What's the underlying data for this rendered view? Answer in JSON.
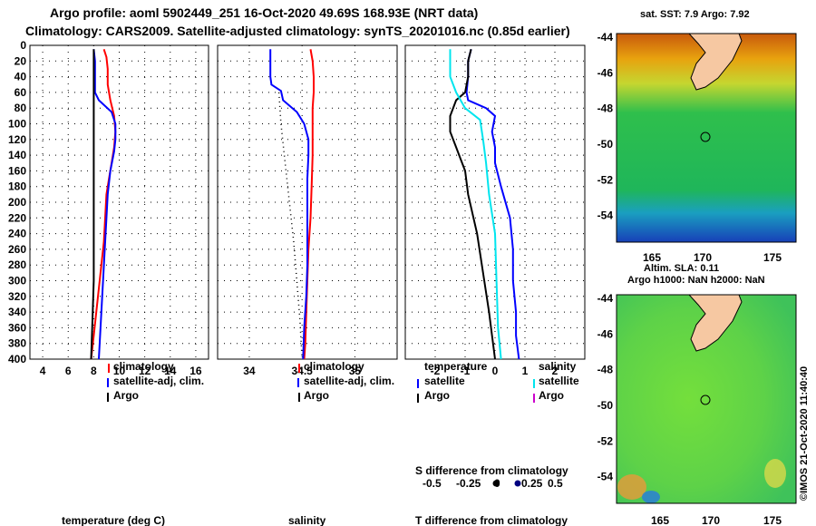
{
  "header": {
    "line1": "Argo profile: aoml 5902449_251 16-Oct-2020 49.69S 168.93E (NRT data)",
    "line2": "Climatology: CARS2009. Satellite-adjusted climatology: synTS_20201016.nc (0.85d earlier)"
  },
  "colors": {
    "argo": "#000000",
    "climatology": "#ff0000",
    "satellite": "#0000ff",
    "sal_satellite": "#00e5ee",
    "sal_argo": "#cc00cc"
  },
  "chart_data": [
    {
      "type": "line",
      "id": "temperature",
      "xlabel": "temperature (deg C)",
      "xlim": [
        3,
        17
      ],
      "xticks": [
        4,
        6,
        8,
        10,
        12,
        14,
        16
      ],
      "ylim": [
        0,
        400
      ],
      "yticks": [
        0,
        20,
        40,
        60,
        80,
        100,
        120,
        140,
        160,
        180,
        200,
        220,
        240,
        260,
        280,
        300,
        320,
        340,
        360,
        380,
        400
      ],
      "series": [
        {
          "name": "climatology",
          "color": "#ff0000",
          "points": [
            [
              8.8,
              5
            ],
            [
              9.0,
              15
            ],
            [
              9.1,
              30
            ],
            [
              9.1,
              50
            ],
            [
              9.3,
              70
            ],
            [
              9.6,
              90
            ],
            [
              9.7,
              110
            ],
            [
              9.6,
              130
            ],
            [
              9.4,
              150
            ],
            [
              9.2,
              170
            ],
            [
              9.0,
              190
            ],
            [
              8.9,
              220
            ],
            [
              8.8,
              250
            ],
            [
              8.6,
              280
            ],
            [
              8.4,
              310
            ],
            [
              8.2,
              340
            ],
            [
              8.0,
              370
            ],
            [
              7.8,
              400
            ]
          ]
        },
        {
          "name": "satellite-adj, clim.",
          "color": "#0000ff",
          "points": [
            [
              8.0,
              5
            ],
            [
              8.1,
              20
            ],
            [
              8.1,
              40
            ],
            [
              8.1,
              60
            ],
            [
              8.4,
              70
            ],
            [
              9.4,
              85
            ],
            [
              9.7,
              100
            ],
            [
              9.7,
              120
            ],
            [
              9.6,
              135
            ],
            [
              9.3,
              160
            ],
            [
              9.1,
              190
            ],
            [
              9.0,
              220
            ],
            [
              8.9,
              250
            ],
            [
              8.8,
              280
            ],
            [
              8.7,
              310
            ],
            [
              8.6,
              340
            ],
            [
              8.5,
              370
            ],
            [
              8.4,
              400
            ]
          ]
        },
        {
          "name": "Argo",
          "color": "#000000",
          "points": [
            [
              8.0,
              5
            ],
            [
              8.0,
              100
            ],
            [
              8.0,
              200
            ],
            [
              8.0,
              300
            ],
            [
              7.9,
              350
            ],
            [
              7.8,
              400
            ]
          ]
        }
      ],
      "legend": [
        "climatology",
        "satellite-adj, clim.",
        "Argo"
      ]
    },
    {
      "type": "line",
      "id": "salinity",
      "xlabel": "salinity",
      "xlim": [
        33.7,
        35.4
      ],
      "xticks": [
        34,
        34.5,
        35
      ],
      "xticklabels": [
        "34",
        "34.5",
        "35"
      ],
      "ylim": [
        0,
        400
      ],
      "series": [
        {
          "name": "climatology",
          "color": "#ff0000",
          "points": [
            [
              34.58,
              5
            ],
            [
              34.6,
              20
            ],
            [
              34.61,
              40
            ],
            [
              34.61,
              60
            ],
            [
              34.6,
              80
            ],
            [
              34.6,
              100
            ],
            [
              34.6,
              140
            ],
            [
              34.59,
              180
            ],
            [
              34.58,
              220
            ],
            [
              34.56,
              260
            ],
            [
              34.55,
              300
            ],
            [
              34.54,
              340
            ],
            [
              34.53,
              380
            ],
            [
              34.52,
              400
            ]
          ]
        },
        {
          "name": "satellite-adj, clim.",
          "color": "#0000ff",
          "points": [
            [
              34.2,
              5
            ],
            [
              34.2,
              20
            ],
            [
              34.2,
              40
            ],
            [
              34.21,
              50
            ],
            [
              34.3,
              58
            ],
            [
              34.32,
              70
            ],
            [
              34.45,
              85
            ],
            [
              34.52,
              100
            ],
            [
              34.56,
              120
            ],
            [
              34.56,
              140
            ],
            [
              34.55,
              170
            ],
            [
              34.55,
              200
            ],
            [
              34.55,
              240
            ],
            [
              34.55,
              280
            ],
            [
              34.54,
              320
            ],
            [
              34.52,
              360
            ],
            [
              34.51,
              400
            ]
          ]
        },
        {
          "name": "Argo",
          "color": "#000000",
          "dotted": true,
          "points": [
            [
              34.28,
              60
            ],
            [
              34.3,
              100
            ],
            [
              34.34,
              150
            ],
            [
              34.38,
              200
            ],
            [
              34.42,
              250
            ],
            [
              34.45,
              300
            ],
            [
              34.48,
              350
            ],
            [
              34.5,
              400
            ]
          ]
        }
      ],
      "legend": [
        "climatology",
        "satellite-adj, clim.",
        "Argo"
      ]
    },
    {
      "type": "line",
      "id": "difference",
      "xlabel": "T difference from climatology",
      "xlim": [
        -3,
        3
      ],
      "xticks": [
        -2,
        -1,
        0,
        1,
        2
      ],
      "ylim": [
        0,
        400
      ],
      "sal_axis": {
        "label": "S difference from climatology",
        "ticks": [
          -0.5,
          -0.25,
          0,
          0.25,
          0.5
        ],
        "ticklabels": [
          "-0.5",
          "-0.25",
          "0",
          "0.25",
          "0.5"
        ]
      },
      "series": [
        {
          "name": "T satellite",
          "color": "#0000ff",
          "points": [
            [
              -0.8,
              5
            ],
            [
              -0.9,
              20
            ],
            [
              -0.9,
              40
            ],
            [
              -0.95,
              60
            ],
            [
              -0.9,
              70
            ],
            [
              -0.3,
              80
            ],
            [
              0.0,
              90
            ],
            [
              -0.1,
              110
            ],
            [
              0.0,
              130
            ],
            [
              0.0,
              150
            ],
            [
              0.2,
              180
            ],
            [
              0.5,
              220
            ],
            [
              0.6,
              260
            ],
            [
              0.6,
              300
            ],
            [
              0.7,
              340
            ],
            [
              0.7,
              370
            ],
            [
              0.8,
              400
            ]
          ]
        },
        {
          "name": "T Argo",
          "color": "#000000",
          "points": [
            [
              -0.8,
              5
            ],
            [
              -0.9,
              20
            ],
            [
              -0.9,
              40
            ],
            [
              -1.0,
              60
            ],
            [
              -1.3,
              70
            ],
            [
              -1.5,
              90
            ],
            [
              -1.5,
              110
            ],
            [
              -1.3,
              130
            ],
            [
              -1.0,
              160
            ],
            [
              -0.9,
              190
            ],
            [
              -0.6,
              240
            ],
            [
              -0.4,
              290
            ],
            [
              -0.2,
              340
            ],
            [
              -0.1,
              370
            ],
            [
              0.0,
              400
            ]
          ]
        },
        {
          "name": "S satellite",
          "color": "#00e5ee",
          "points": [
            [
              -1.5,
              5
            ],
            [
              -1.5,
              20
            ],
            [
              -1.5,
              40
            ],
            [
              -1.3,
              60
            ],
            [
              -1.0,
              80
            ],
            [
              -0.5,
              95
            ],
            [
              -0.4,
              120
            ],
            [
              -0.3,
              150
            ],
            [
              -0.2,
              190
            ],
            [
              0.0,
              240
            ],
            [
              0.05,
              300
            ],
            [
              0.1,
              360
            ],
            [
              0.2,
              400
            ]
          ]
        }
      ],
      "legend_temperature": {
        "title": "temperature",
        "items": [
          "satellite",
          "Argo"
        ]
      },
      "legend_salinity": {
        "title": "salinity",
        "items": [
          "satellite",
          "Argo"
        ]
      }
    }
  ],
  "maps": [
    {
      "id": "sst",
      "title": "sat. SST: 7.9 Argo: 7.92",
      "yticks": [
        "-44",
        "-46",
        "-48",
        "-50",
        "-52",
        "-54"
      ],
      "xticks": [
        "165",
        "170",
        "175"
      ]
    },
    {
      "id": "sla",
      "title1": "Altim. SLA: 0.11",
      "title2": "Argo h1000: NaN h2000: NaN",
      "yticks": [
        "-44",
        "-46",
        "-48",
        "-50",
        "-52",
        "-54"
      ],
      "xticks": [
        "165",
        "170",
        "175"
      ]
    }
  ],
  "footer": {
    "credit": "©IMOS 21-Oct-2020 11:40:40"
  }
}
